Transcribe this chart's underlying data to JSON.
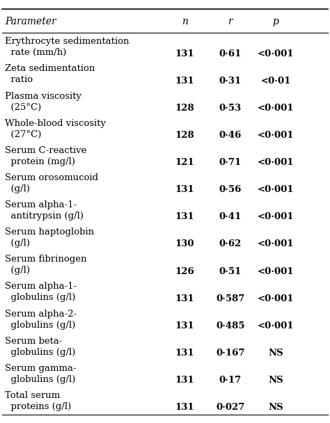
{
  "headers": [
    "Parameter",
    "n",
    "r",
    "p"
  ],
  "rows": [
    [
      "Erythrocyte sedimentation\n  rate (mm/h)",
      "131",
      "0·61",
      "<0·001"
    ],
    [
      "Zeta sedimentation\n  ratio",
      "131",
      "0·31",
      "<0·01"
    ],
    [
      "Plasma viscosity\n  (25°C)",
      "128",
      "0·53",
      "<0·001"
    ],
    [
      "Whole-blood viscosity\n  (27°C)",
      "128",
      "0·46",
      "<0·001"
    ],
    [
      "Serum C-reactive\n  protein (mg/l)",
      "121",
      "0·71",
      "<0·001"
    ],
    [
      "Serum orosomucoid\n  (g/l)",
      "131",
      "0·56",
      "<0·001"
    ],
    [
      "Serum alpha-1-\n  antitrypsin (g/l)",
      "131",
      "0·41",
      "<0·001"
    ],
    [
      "Serum haptoglobin\n  (g/l)",
      "130",
      "0·62",
      "<0·001"
    ],
    [
      "Serum fibrinogen\n  (g/l)",
      "126",
      "0·51",
      "<0·001"
    ],
    [
      "Serum alpha-1-\n  globulins (g/l)",
      "131",
      "0·587",
      "<0·001"
    ],
    [
      "Serum alpha-2-\n  globulins (g/l)",
      "131",
      "0·485",
      "<0·001"
    ],
    [
      "Serum beta-\n  globulins (g/l)",
      "131",
      "0·167",
      "NS"
    ],
    [
      "Serum gamma-\n  globulins (g/l)",
      "131",
      "0·17",
      "NS"
    ],
    [
      "Total serum\n  proteins (g/l)",
      "131",
      "0·027",
      "NS"
    ]
  ],
  "header_font_size": 10,
  "body_font_size": 9.5,
  "background_color": "#ffffff",
  "text_color": "#000000",
  "line_color": "#000000"
}
